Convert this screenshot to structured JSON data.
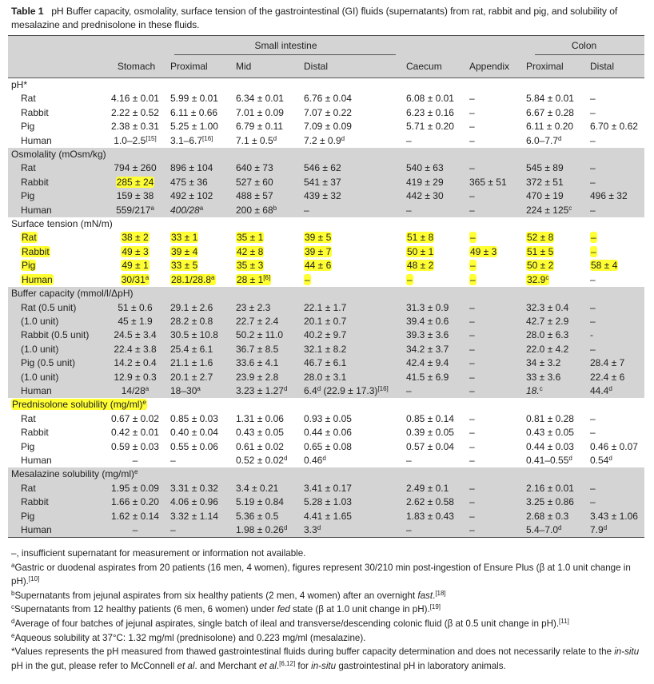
{
  "caption": {
    "label": "Table 1",
    "text": "pH Buffer capacity, osmolality, surface tension of the gastrointestinal (GI) fluids (supernatants) from rat, rabbit and pig, and solubility of mesalazine and prednisolone in these fluids."
  },
  "header": {
    "group_small_intestine": "Small intestine",
    "group_colon": "Colon",
    "columns": [
      "",
      "Stomach",
      "Proximal",
      "Mid",
      "Distal",
      "Caecum",
      "Appendix",
      "Proximal",
      "Distal"
    ]
  },
  "highlight_color": "#ffff33",
  "shade_color": "#d4d4d4",
  "sections": [
    {
      "title": "pH*",
      "shaded": false,
      "title_highlight": false,
      "rows": [
        {
          "label": "Rat",
          "values": [
            "4.16 ± 0.01",
            "5.99 ± 0.01",
            "6.34 ± 0.01",
            "6.76 ± 0.04",
            "6.08 ± 0.01",
            "–",
            "5.84 ± 0.01",
            "–"
          ]
        },
        {
          "label": "Rabbit",
          "values": [
            "2.22 ± 0.52",
            "6.11 ± 0.66",
            "7.01 ± 0.09",
            "7.07 ± 0.22",
            "6.23 ± 0.16",
            "–",
            "6.67 ± 0.28",
            "–"
          ]
        },
        {
          "label": "Pig",
          "values": [
            "2.38 ± 0.31",
            "5.25 ± 1.00",
            "6.79 ± 0.11",
            "7.09 ± 0.09",
            "5.71 ± 0.20",
            "–",
            "6.11 ± 0.20",
            "6.70 ± 0.62"
          ]
        },
        {
          "label": "Human",
          "values": [
            "1.0–2.5^[15]^",
            "3.1–6.7^[16]^",
            "7.1 ± 0.5^d^",
            "7.2 ± 0.9^d^",
            "–",
            "–",
            "6.0–7.7^d^",
            "–"
          ]
        }
      ]
    },
    {
      "title": "Osmolality (mOsm/kg)",
      "shaded": true,
      "title_highlight": false,
      "rows": [
        {
          "label": "Rat",
          "values": [
            "794 ± 260",
            "896 ± 104",
            "640 ± 73",
            "546 ± 62",
            "540 ± 63",
            "–",
            "545 ± 89",
            "–"
          ]
        },
        {
          "label": "Rabbit",
          "values": [
            "285 ± 24",
            "475 ± 36",
            "527 ± 60",
            "541 ± 37",
            "419 ± 29",
            "365 ± 51",
            "372 ± 51",
            "–"
          ],
          "highlight": [
            0
          ]
        },
        {
          "label": "Pig",
          "values": [
            "159 ± 38",
            "492 ± 102",
            "488 ± 57",
            "439 ± 32",
            "442 ± 30",
            "–",
            "470 ± 19",
            "496 ± 32"
          ]
        },
        {
          "label": "Human",
          "values": [
            "559/217^a^",
            "~400/287^a^",
            "200 ± 68^b^",
            "–",
            "–",
            "–",
            "224 ± 125^c^",
            "–"
          ]
        }
      ]
    },
    {
      "title": "Surface tension (mN/m)",
      "shaded": false,
      "title_highlight": false,
      "rows": [
        {
          "label": "Rat",
          "label_highlight": true,
          "values": [
            "38 ± 2",
            "33 ± 1",
            "35 ± 1",
            "39 ± 5",
            "51 ± 8",
            "–",
            "52 ± 8",
            "–"
          ],
          "highlight": [
            0,
            1,
            2,
            3,
            4,
            5,
            6,
            7
          ]
        },
        {
          "label": "Rabbit",
          "label_highlight": true,
          "values": [
            "49 ± 3",
            "39 ± 4",
            "42 ± 8",
            "39 ± 7",
            "50 ± 1",
            "49 ± 3",
            "51 ± 5",
            "–"
          ],
          "highlight": [
            0,
            1,
            2,
            3,
            4,
            5,
            6,
            7
          ]
        },
        {
          "label": "Pig",
          "label_highlight": true,
          "values": [
            "49 ± 1",
            "33 ± 5",
            "35 ± 3",
            "44 ± 6",
            "48 ± 2",
            "–",
            "50 ± 2",
            "58 ± 4"
          ],
          "highlight": [
            0,
            1,
            2,
            3,
            4,
            5,
            6,
            7
          ]
        },
        {
          "label": "Human",
          "label_highlight": true,
          "values": [
            "30/31^a^",
            "28.1/28.8^a^",
            "28 ± 1^[6]^",
            "–",
            "–",
            "–",
            "32.9^c^",
            "–"
          ],
          "highlight": [
            0,
            1,
            2,
            3,
            4,
            5,
            6
          ]
        }
      ]
    },
    {
      "title": "Buffer capacity (mmol/l/ΔpH)",
      "shaded": true,
      "title_highlight": false,
      "rows": [
        {
          "label": "Rat (0.5 unit)",
          "values": [
            "51 ± 0.6",
            "29.1 ± 2.6",
            "23 ± 2.3",
            "22.1 ± 1.7",
            "31.3 ± 0.9",
            "–",
            "32.3 ± 0.4",
            "–"
          ]
        },
        {
          "label": "(1.0 unit)",
          "values": [
            "45 ± 1.9",
            "28.2 ± 0.8",
            "22.7 ± 2.4",
            "20.1 ± 0.7",
            "39.4 ± 0.6",
            "–",
            "42.7 ± 2.9",
            "–"
          ]
        },
        {
          "label": "Rabbit (0.5 unit)",
          "values": [
            "24.5 ± 3.4",
            "30.5 ± 10.8",
            "50.2 ± 11.0",
            "40.2 ± 9.7",
            "39.3 ± 3.6",
            "–",
            "28.0 ± 6.3",
            "-"
          ]
        },
        {
          "label": "(1.0 unit)",
          "values": [
            "22.4 ± 3.8",
            "25.4 ± 6.1",
            "36.7 ± 8.5",
            "32.1 ± 8.2",
            "34.2 ± 3.7",
            "–",
            "22.0 ± 4.2",
            "–"
          ]
        },
        {
          "label": "Pig (0.5 unit)",
          "values": [
            "14.2 ± 0.4",
            "21.1 ± 1.6",
            "33.6 ± 4.1",
            "46.7 ± 6.1",
            "42.4 ± 9.4",
            "–",
            "34 ± 3.2",
            "28.4 ± 7"
          ]
        },
        {
          "label": "(1.0 unit)",
          "values": [
            "12.9 ± 0.3",
            "20.1 ± 2.7",
            "23.9 ± 2.8",
            "28.0 ± 3.1",
            "41.5 ± 6.9",
            "–",
            "33 ± 3.6",
            "22.4 ± 6"
          ]
        },
        {
          "label": "Human",
          "values": [
            "14/28^a^",
            "18–30^a^",
            "3.23 ± 1.27^d^",
            "6.4^d^ (22.9 ± 17.3)^[16]^",
            "–",
            "–",
            "~18.9^c^",
            "44.4^d^"
          ]
        }
      ]
    },
    {
      "title": "Prednisolone solubility (mg/ml)^e^",
      "shaded": false,
      "title_highlight": true,
      "rows": [
        {
          "label": "Rat",
          "values": [
            "0.67 ± 0.02",
            "0.85 ± 0.03",
            "1.31 ± 0.06",
            "0.93 ± 0.05",
            "0.85 ± 0.14",
            "–",
            "0.81 ± 0.28",
            "–"
          ]
        },
        {
          "label": "Rabbit",
          "values": [
            "0.42 ± 0.01",
            "0.40 ± 0.04",
            "0.43 ± 0.05",
            "0.44 ± 0.06",
            "0.39 ± 0.05",
            "–",
            "0.43 ± 0.05",
            "–"
          ]
        },
        {
          "label": "Pig",
          "values": [
            "0.59 ± 0.03",
            "0.55 ± 0.06",
            "0.61 ± 0.02",
            "0.65 ± 0.08",
            "0.57 ± 0.04",
            "–",
            "0.44 ± 0.03",
            "0.46 ± 0.07"
          ]
        },
        {
          "label": "Human",
          "values": [
            "–",
            "–",
            "0.52 ± 0.02^d^",
            "0.46^d^",
            "–",
            "–",
            "0.41–0.55^d^",
            "0.54^d^"
          ]
        }
      ]
    },
    {
      "title": "Mesalazine solubility (mg/ml)^e^",
      "shaded": true,
      "title_highlight": false,
      "rows": [
        {
          "label": "Rat",
          "values": [
            "1.95 ± 0.09",
            "3.31 ± 0.32",
            "3.4 ± 0.21",
            "3.41 ± 0.17",
            "2.49 ± 0.1",
            "–",
            "2.16 ± 0.01",
            "–"
          ]
        },
        {
          "label": "Rabbit",
          "values": [
            "1.66 ± 0.20",
            "4.06 ± 0.96",
            "5.19 ± 0.84",
            "5.28 ± 1.03",
            "2.62 ± 0.58",
            "–",
            "3.25 ± 0.86",
            "–"
          ]
        },
        {
          "label": "Pig",
          "values": [
            "1.62 ± 0.14",
            "3.32 ± 1.14",
            "5.36 ± 0.5",
            "4.41 ± 1.65",
            "1.83 ± 0.43",
            "–",
            "2.68 ± 0.3",
            "3.43 ± 1.06"
          ]
        },
        {
          "label": "Human",
          "values": [
            "–",
            "–",
            "1.98 ± 0.26^d^",
            "3.3^d^",
            "–",
            "–",
            "5.4–7.0^d^",
            "7.9^d^"
          ]
        }
      ]
    }
  ],
  "footnotes": [
    "–, insufficient supernatant for measurement or information not available.",
    "^a^Gastric or duodenal aspirates from 20 patients (16 men, 4 women), figures represent 30/210 min post-ingestion of Ensure Plus (β at 1.0 unit change in pH).^[10]^",
    "^b^Supernatants from jejunal aspirates from six healthy patients (2 men, 4 women) after an overnight ~fast~.^[18]^",
    "^c^Supernatants from 12 healthy patients (6 men, 6 women) under ~fed~ state (β at 1.0 unit change in pH).^[19]^",
    "^d^Average of four batches of jejunal aspirates, single batch of ileal and transverse/descending colonic fluid (β at 0.5 unit change in pH).^[11]^",
    "^e^Aqueous solubility at 37°C: 1.32 mg/ml (prednisolone) and 0.223 mg/ml (mesalazine).",
    "*Values represents the pH measured from thawed gastrointestinal fluids during buffer capacity determination and does not necessarily relate to the ~in-situ~ pH in the gut, please refer to McConnell ~et al~. and Merchant ~et al~.^[6,12]^ for ~in-situ~ gastrointestinal pH in laboratory animals."
  ]
}
